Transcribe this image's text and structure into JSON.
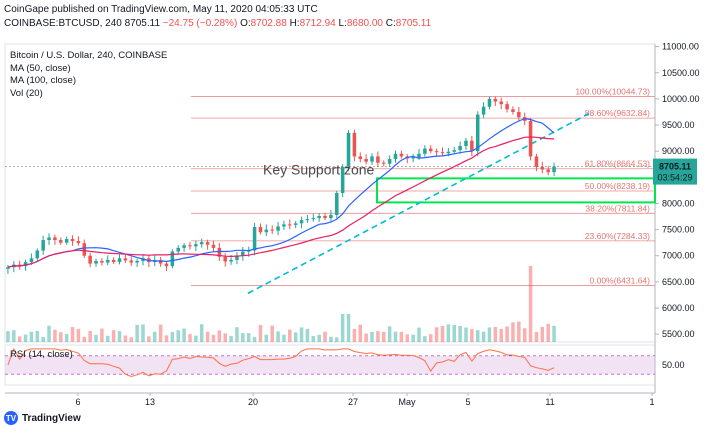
{
  "header": {
    "line1": "CoinGape published on TradingView.com, May 11, 2020 04:05:33 UTC",
    "symbol": "COINBASE:BTCUSD, 240",
    "last": "8705.11",
    "change": "−24.75 (−0.28%)",
    "o_label": "O:",
    "o": "8702.88",
    "h_label": "H:",
    "h": "8712.94",
    "l_label": "L:",
    "l": "8680.00",
    "c_label": "C:",
    "c": "8705.11"
  },
  "legend": {
    "title": "Bitcoin / U.S. Dollar, 240, COINBASE",
    "ma50": "MA (50, close)",
    "ma100": "MA (100, close)",
    "vol": "Vol (20)"
  },
  "rsi_label": "RSI (14, close)",
  "footer": {
    "brand": "TradingView"
  },
  "colors": {
    "up": "#26a69a",
    "down": "#ef5350",
    "ma50": "#2962ff",
    "ma100": "#e91e63",
    "fib": "#e57373",
    "support": "#00e64d",
    "trend": "#00bcd4",
    "rsi": "#ff7043",
    "rsi_band": "#e1bee7"
  },
  "chart_data": {
    "type": "candlestick",
    "annotation": "Key Support zone",
    "price_axis": {
      "ticks": [
        5500,
        6000,
        6500,
        7000,
        7500,
        8000,
        8500,
        9000,
        9500,
        10000,
        10500,
        11000
      ],
      "range": [
        5350,
        11050
      ]
    },
    "current_price": "8705.11",
    "countdown": "03:54:29",
    "x_ticks": [
      "6",
      "13",
      "20",
      "27",
      "May",
      "5",
      "11",
      "1"
    ],
    "fib_levels": [
      {
        "label": "100.00%(10044.73)",
        "value": 10044.73
      },
      {
        "label": "88.60%(9632.84)",
        "value": 9632.84
      },
      {
        "label": "61.80%(8664.53)",
        "value": 8664.53
      },
      {
        "label": "50.00%(8238.19)",
        "value": 8238.19
      },
      {
        "label": "38.20%(7811.84)",
        "value": 7811.84
      },
      {
        "label": "23.60%(7284.33)",
        "value": 7284.33
      },
      {
        "label": "0.00%(6431.64)",
        "value": 6431.64
      }
    ],
    "support_zone": {
      "top": 8480,
      "bottom": 8020
    },
    "trendline": [
      [
        0,
        6280
      ],
      [
        115,
        9720
      ]
    ],
    "close_series": [
      6780,
      6830,
      6800,
      6880,
      6950,
      7100,
      7300,
      7350,
      7300,
      7250,
      7320,
      7280,
      7240,
      7000,
      6850,
      6900,
      6870,
      6920,
      6880,
      6950,
      6910,
      6870,
      6900,
      6950,
      6880,
      6920,
      6850,
      6800,
      7080,
      7150,
      7200,
      7180,
      7220,
      7260,
      7210,
      7150,
      6980,
      6890,
      6920,
      7000,
      7080,
      7100,
      7550,
      7450,
      7500,
      7480,
      7560,
      7600,
      7590,
      7620,
      7680,
      7700,
      7720,
      7760,
      7720,
      7780,
      8200,
      8700,
      9350,
      8900,
      8850,
      8800,
      8900,
      8780,
      8760,
      8850,
      8950,
      8900,
      8860,
      8880,
      8950,
      9050,
      9000,
      8980,
      8960,
      8990,
      9020,
      9100,
      9200,
      9000,
      9700,
      9850,
      10000,
      9950,
      9900,
      9800,
      9750,
      9650,
      9580,
      8900,
      8700,
      8650,
      8600,
      8705
    ],
    "rsi_axis": {
      "tick": "50.00",
      "band": [
        30,
        70
      ]
    }
  }
}
